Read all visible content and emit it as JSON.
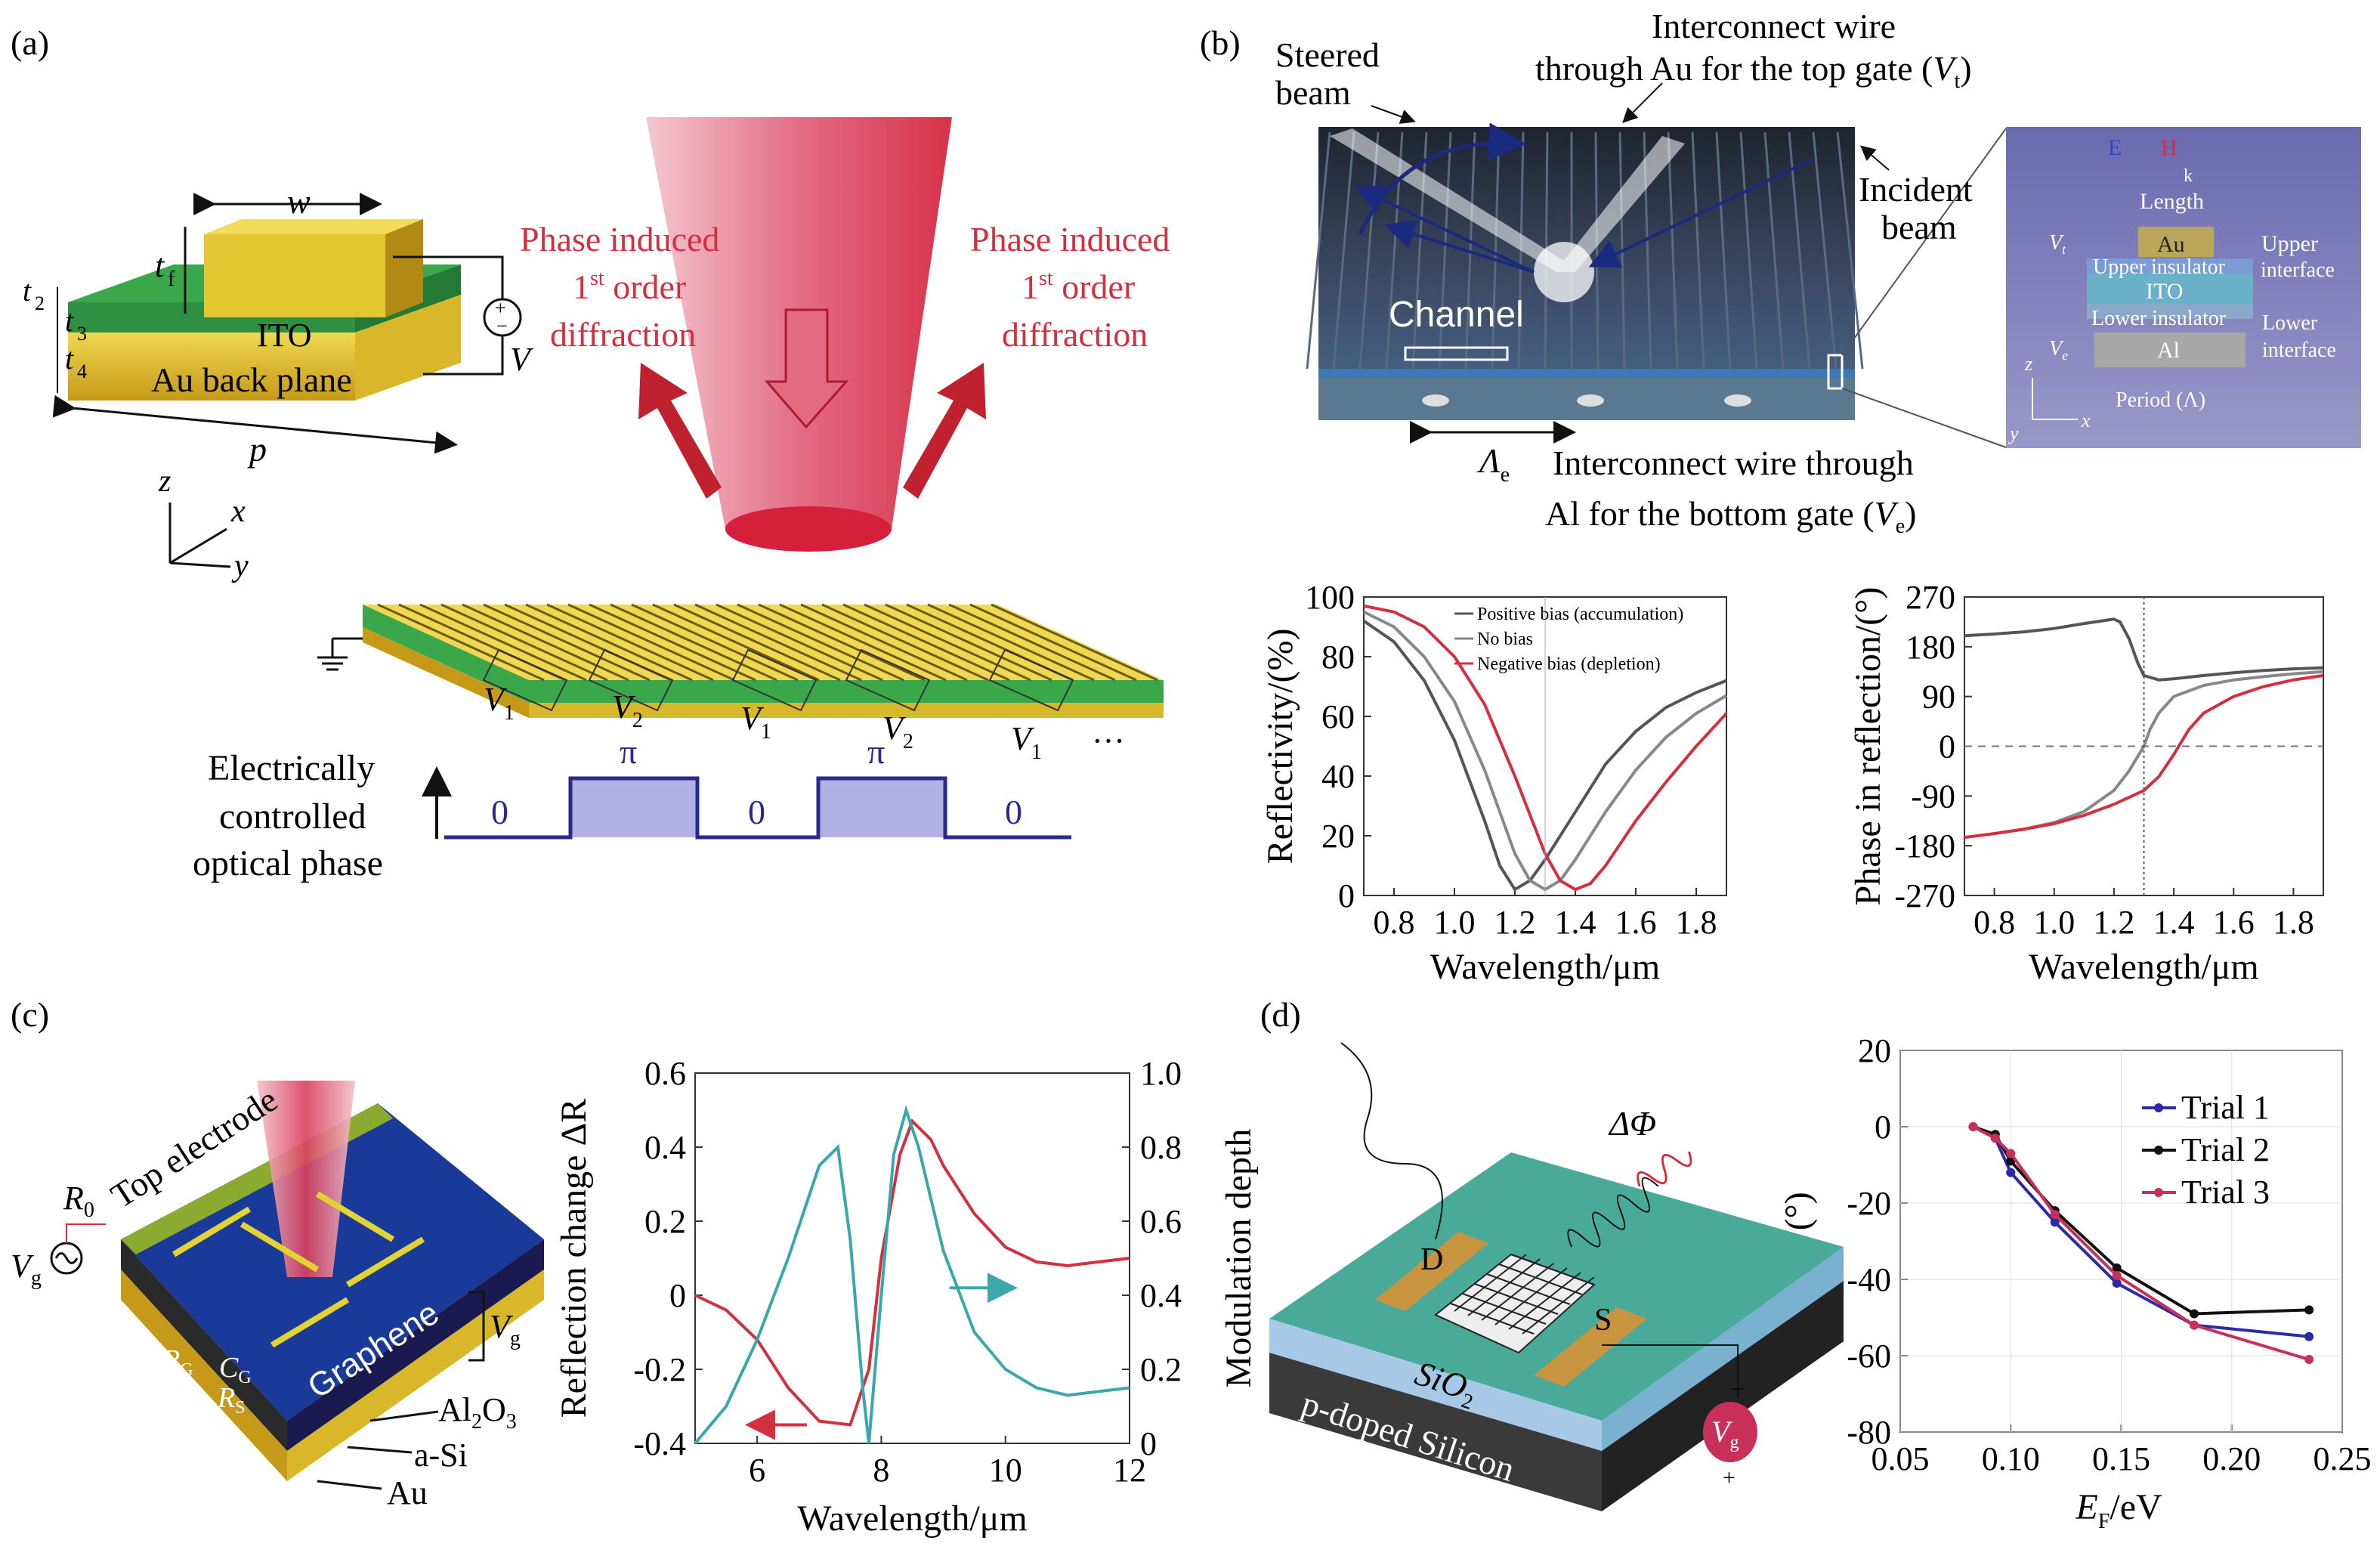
{
  "panel_labels": {
    "a": "(a)",
    "b": "(b)",
    "c": "(c)",
    "d": "(d)"
  },
  "panel_a": {
    "w": "w",
    "tf": "t",
    "tf_sub": "f",
    "t2": "t",
    "t2_sub": "2",
    "t3": "t",
    "t3_sub": "3",
    "t4": "t",
    "t4_sub": "4",
    "ito": "ITO",
    "au_back": "Au back plane",
    "p": "p",
    "v": "V",
    "axis_z": "z",
    "axis_x": "x",
    "axis_y": "y",
    "phase_left": [
      "Phase induced",
      "1",
      "st",
      " order",
      "diffraction"
    ],
    "phase_right": [
      "Phase induced",
      "1",
      "st",
      " order",
      "diffraction"
    ],
    "voltages": [
      "V",
      "1",
      "V",
      "2",
      "V",
      "1",
      "V",
      "2",
      "V",
      "1"
    ],
    "ellipsis": "···",
    "ecop": [
      "Electrically",
      "controlled",
      "optical phase"
    ],
    "phase_values": [
      "0",
      "π",
      "0",
      "π",
      "0"
    ],
    "colors": {
      "gold": "#d8b82a",
      "green": "#3aa84a",
      "red": "#d32f3f",
      "phase_fill": "#b3b0e6",
      "phase_line": "#2a2a8a"
    }
  },
  "panel_b": {
    "steered": [
      "Steered",
      "beam"
    ],
    "interconnect_top": [
      "Interconnect wire",
      "through Au for the top gate (",
      "V",
      "t",
      ")"
    ],
    "incident": [
      "Incident",
      "beam"
    ],
    "channel": "Channel",
    "lambda_e": "Λ",
    "lambda_e_sub": "e",
    "interconnect_bottom": [
      "Interconnect wire through",
      "Al for the bottom gate (",
      "V",
      "e",
      ")"
    ],
    "inset": {
      "E": "E",
      "H": "H",
      "k": "k",
      "length": "Length",
      "vt": "V",
      "vt_sub": "t",
      "au": "Au",
      "upper": "Upper",
      "upper_ins": "Upper insulator",
      "interface": "interface",
      "ito": "ITO",
      "lower_ins": "Lower insulator",
      "lower": "Lower",
      "interface2": "interface",
      "ve": "V",
      "ve_sub": "e",
      "al": "Al",
      "period": "Period (Λ)",
      "z": "z",
      "x": "x",
      "y": "y"
    }
  },
  "chart_data": [
    {
      "type": "line",
      "id": "reflectivity",
      "xlabel": "Wavelength/μm",
      "ylabel": "Reflectivity/(%)",
      "xlim": [
        0.7,
        1.9
      ],
      "ylim": [
        0,
        100
      ],
      "xticks": [
        "0.8",
        "1.0",
        "1.2",
        "1.4",
        "1.6",
        "1.8"
      ],
      "yticks": [
        "0",
        "20",
        "40",
        "60",
        "80",
        "100"
      ],
      "legend": [
        "Positive bias (accumulation)",
        "No bias",
        "Negative bias (depletion)"
      ],
      "series": [
        {
          "name": "Positive bias (accumulation)",
          "color": "#555555",
          "x": [
            0.7,
            0.8,
            0.9,
            1.0,
            1.1,
            1.15,
            1.2,
            1.25,
            1.3,
            1.4,
            1.5,
            1.6,
            1.7,
            1.8,
            1.9
          ],
          "y": [
            92,
            85,
            72,
            52,
            25,
            10,
            2,
            5,
            12,
            28,
            44,
            55,
            63,
            68,
            72
          ]
        },
        {
          "name": "No bias",
          "color": "#888888",
          "x": [
            0.7,
            0.8,
            0.9,
            1.0,
            1.1,
            1.2,
            1.25,
            1.3,
            1.35,
            1.4,
            1.5,
            1.6,
            1.7,
            1.8,
            1.9
          ],
          "y": [
            95,
            90,
            80,
            65,
            42,
            14,
            5,
            2,
            5,
            12,
            28,
            42,
            53,
            61,
            67
          ]
        },
        {
          "name": "Negative bias (depletion)",
          "color": "#d32f3f",
          "x": [
            0.7,
            0.8,
            0.9,
            1.0,
            1.1,
            1.2,
            1.3,
            1.35,
            1.4,
            1.45,
            1.5,
            1.6,
            1.7,
            1.8,
            1.9
          ],
          "y": [
            97,
            95,
            90,
            80,
            64,
            40,
            14,
            5,
            2,
            4,
            10,
            25,
            38,
            50,
            61
          ]
        }
      ]
    },
    {
      "type": "line",
      "id": "phase",
      "xlabel": "Wavelength/μm",
      "ylabel": "Phase in reflection/(°)",
      "xlim": [
        0.7,
        1.9
      ],
      "ylim": [
        -270,
        270
      ],
      "xticks": [
        "0.8",
        "1.0",
        "1.2",
        "1.4",
        "1.6",
        "1.8"
      ],
      "yticks": [
        "270",
        "180",
        "90",
        "0",
        "-90",
        "-180",
        "-270"
      ],
      "series": [
        {
          "name": "",
          "color": "#555555",
          "x": [
            0.7,
            0.8,
            0.9,
            1.0,
            1.1,
            1.2,
            1.22,
            1.25,
            1.28,
            1.3,
            1.35,
            1.4,
            1.5,
            1.6,
            1.7,
            1.8,
            1.9
          ],
          "y": [
            200,
            203,
            207,
            213,
            222,
            230,
            225,
            195,
            150,
            128,
            120,
            122,
            128,
            133,
            137,
            140,
            142
          ]
        },
        {
          "name": "",
          "color": "#888888",
          "x": [
            0.7,
            0.8,
            0.9,
            1.0,
            1.1,
            1.2,
            1.25,
            1.3,
            1.32,
            1.35,
            1.4,
            1.5,
            1.6,
            1.7,
            1.8,
            1.9
          ],
          "y": [
            -165,
            -158,
            -150,
            -138,
            -118,
            -80,
            -45,
            0,
            30,
            60,
            90,
            110,
            120,
            126,
            131,
            135
          ]
        },
        {
          "name": "",
          "color": "#d32f3f",
          "x": [
            0.7,
            0.8,
            0.9,
            1.0,
            1.1,
            1.2,
            1.3,
            1.35,
            1.4,
            1.45,
            1.5,
            1.6,
            1.7,
            1.8,
            1.9
          ],
          "y": [
            -165,
            -158,
            -150,
            -140,
            -125,
            -105,
            -80,
            -55,
            -15,
            30,
            60,
            90,
            108,
            120,
            128
          ]
        }
      ]
    },
    {
      "type": "line",
      "id": "reflection_change",
      "xlabel": "Wavelength/μm",
      "ylabel": "Reflection change ΔR",
      "y2label": "Modulation depth",
      "xlim": [
        5,
        12
      ],
      "ylim": [
        -0.4,
        0.6
      ],
      "y2lim": [
        0,
        1.0
      ],
      "xticks": [
        "6",
        "8",
        "10",
        "12"
      ],
      "yticks": [
        "0.6",
        "0.4",
        "0.2",
        "0",
        "-0.2",
        "-0.4"
      ],
      "y2ticks": [
        "1.0",
        "0.8",
        "0.6",
        "0.4",
        "0.2",
        "0"
      ],
      "series": [
        {
          "name": "",
          "color": "#d32f3f",
          "axis": "left",
          "x": [
            5,
            5.5,
            6,
            6.5,
            7,
            7.5,
            7.8,
            8,
            8.3,
            8.5,
            8.8,
            9,
            9.5,
            10,
            10.5,
            11,
            11.5,
            12
          ],
          "y": [
            0,
            -0.04,
            -0.12,
            -0.25,
            -0.34,
            -0.35,
            -0.2,
            0.1,
            0.38,
            0.47,
            0.42,
            0.35,
            0.22,
            0.13,
            0.09,
            0.08,
            0.09,
            0.1
          ]
        },
        {
          "name": "",
          "color": "#3aa8a8",
          "axis": "right",
          "x": [
            5,
            5.5,
            6,
            6.5,
            7,
            7.3,
            7.5,
            7.7,
            7.8,
            8,
            8.2,
            8.4,
            8.6,
            9,
            9.5,
            10,
            10.5,
            11,
            11.5,
            12
          ],
          "y": [
            0,
            0.1,
            0.28,
            0.5,
            0.75,
            0.8,
            0.55,
            0.15,
            0,
            0.4,
            0.78,
            0.9,
            0.8,
            0.52,
            0.3,
            0.2,
            0.15,
            0.13,
            0.14,
            0.15
          ]
        }
      ]
    },
    {
      "type": "line",
      "id": "delta_phi",
      "xlabel": "E_F/eV",
      "ylabel": "ΔΦ/(°)",
      "xlim": [
        0.05,
        0.25
      ],
      "ylim": [
        -80,
        20
      ],
      "xticks": [
        "0.05",
        "0.10",
        "0.15",
        "0.20",
        "0.25"
      ],
      "yticks": [
        "20",
        "0",
        "-20",
        "-40",
        "-60",
        "-80"
      ],
      "legend": [
        "Trial 1",
        "Trial 2",
        "Trial 3"
      ],
      "series": [
        {
          "name": "Trial 1",
          "color": "#2a2aa8",
          "x": [
            0.083,
            0.093,
            0.1,
            0.12,
            0.148,
            0.183,
            0.235
          ],
          "y": [
            0,
            -3,
            -12,
            -25,
            -41,
            -52,
            -55
          ]
        },
        {
          "name": "Trial 2",
          "color": "#111111",
          "x": [
            0.083,
            0.093,
            0.1,
            0.12,
            0.148,
            0.183,
            0.235
          ],
          "y": [
            0,
            -2,
            -9,
            -22,
            -37,
            -49,
            -48
          ]
        },
        {
          "name": "Trial 3",
          "color": "#c8305a",
          "x": [
            0.083,
            0.093,
            0.1,
            0.12,
            0.148,
            0.183,
            0.235
          ],
          "y": [
            0,
            -3,
            -7,
            -23,
            -39,
            -52,
            -61
          ]
        }
      ]
    }
  ],
  "panel_c": {
    "top_electrode": "Top electrode",
    "r0": "R",
    "r0_sub": "0",
    "vg": "V",
    "vg_sub": "g",
    "ce": "C",
    "ce_sub": "E",
    "rs": "R",
    "rs_sub": "S",
    "rg": "R",
    "rg_sub": "G",
    "cg": "C",
    "cg_sub": "G",
    "rs2": "R",
    "rs2_sub": "S",
    "graphene": "Graphene",
    "vg2": "V",
    "vg2_sub": "g",
    "al2o3": "Al",
    "al2o3_sub": "2",
    "al2o3_end": "O",
    "al2o3_sub2": "3",
    "asi": "a-Si",
    "au": "Au"
  },
  "panel_d": {
    "dphi": "ΔΦ",
    "d": "D",
    "s": "S",
    "sio2": "SiO",
    "sio2_sub": "2",
    "psilicon": "p-doped Silicon",
    "vg": "V",
    "vg_sub": "g",
    "minus": "−",
    "plus": "+",
    "xlabel_e": "E",
    "xlabel_sub": "F",
    "xlabel_end": "/eV"
  }
}
